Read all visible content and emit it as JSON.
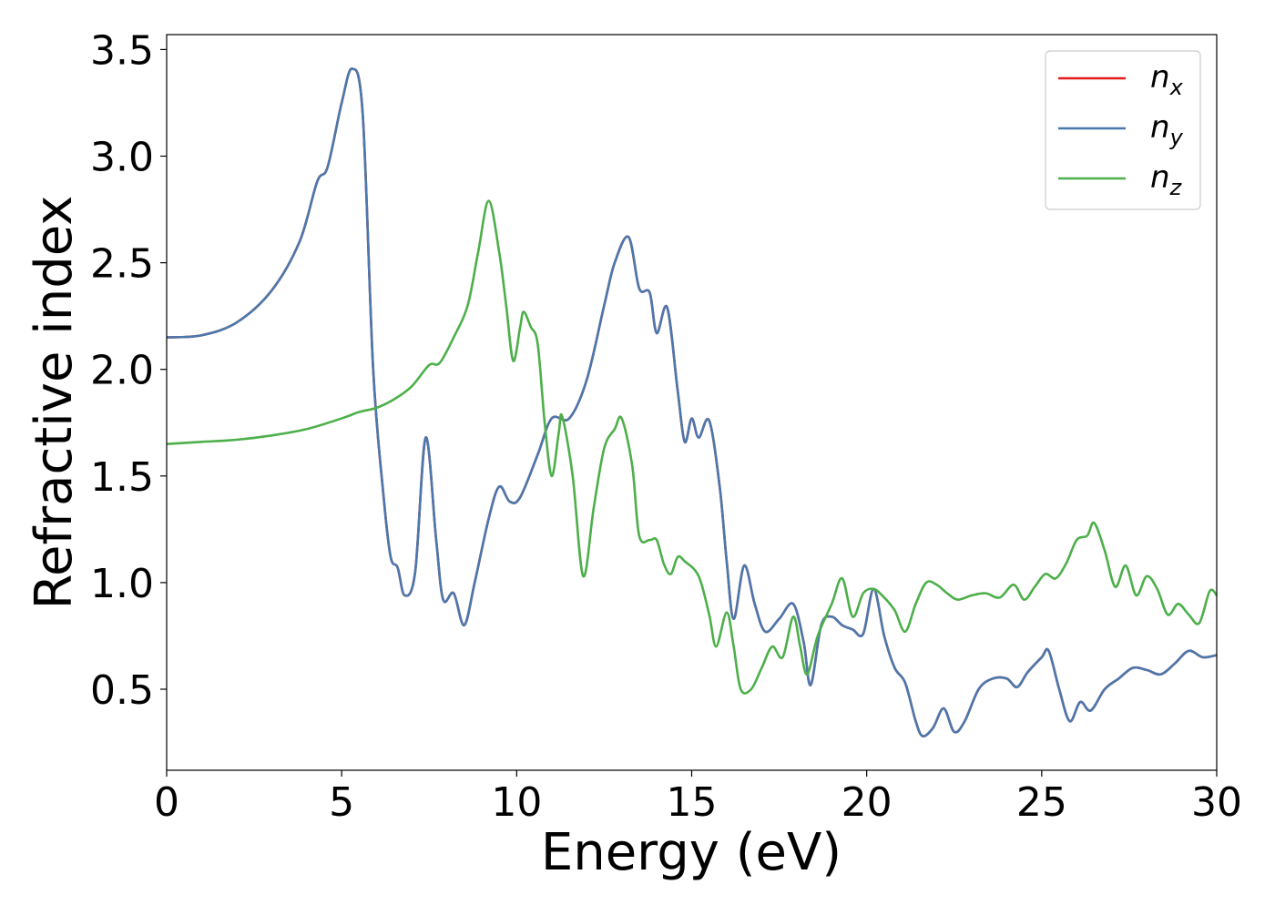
{
  "chart_data": {
    "type": "line",
    "xlabel": "Energy (eV)",
    "ylabel": "Refractive index",
    "xlim": [
      0,
      30
    ],
    "ylim": [
      0.12,
      3.57
    ],
    "xticks": [
      0,
      5,
      10,
      15,
      20,
      25,
      30
    ],
    "xtick_labels": [
      "0",
      "5",
      "10",
      "15",
      "20",
      "25",
      "30"
    ],
    "yticks": [
      0.5,
      1.0,
      1.5,
      2.0,
      2.5,
      3.0,
      3.5
    ],
    "ytick_labels": [
      "0.5",
      "1.0",
      "1.5",
      "2.0",
      "2.5",
      "3.0",
      "3.5"
    ],
    "grid": false,
    "legend_position": "top-right",
    "series": [
      {
        "name": "n",
        "subscript": "x",
        "color": "#e41a1c",
        "points": [
          [
            0,
            2.15
          ],
          [
            1,
            2.16
          ],
          [
            2,
            2.22
          ],
          [
            3,
            2.37
          ],
          [
            3.8,
            2.6
          ],
          [
            4.3,
            2.88
          ],
          [
            4.6,
            2.95
          ],
          [
            5.0,
            3.25
          ],
          [
            5.3,
            3.41
          ],
          [
            5.6,
            3.2
          ],
          [
            5.9,
            2.0
          ],
          [
            6.2,
            1.4
          ],
          [
            6.4,
            1.12
          ],
          [
            6.6,
            1.07
          ],
          [
            6.8,
            0.94
          ],
          [
            7.1,
            1.05
          ],
          [
            7.4,
            1.68
          ],
          [
            7.7,
            1.2
          ],
          [
            7.9,
            0.92
          ],
          [
            8.2,
            0.95
          ],
          [
            8.5,
            0.8
          ],
          [
            8.8,
            1.0
          ],
          [
            9.2,
            1.3
          ],
          [
            9.5,
            1.45
          ],
          [
            9.8,
            1.38
          ],
          [
            10.1,
            1.4
          ],
          [
            10.6,
            1.6
          ],
          [
            11.0,
            1.77
          ],
          [
            11.5,
            1.77
          ],
          [
            12.0,
            1.95
          ],
          [
            12.5,
            2.3
          ],
          [
            12.8,
            2.5
          ],
          [
            13.2,
            2.62
          ],
          [
            13.5,
            2.38
          ],
          [
            13.8,
            2.36
          ],
          [
            14.0,
            2.17
          ],
          [
            14.3,
            2.29
          ],
          [
            14.6,
            1.9
          ],
          [
            14.8,
            1.66
          ],
          [
            15.0,
            1.77
          ],
          [
            15.2,
            1.68
          ],
          [
            15.5,
            1.76
          ],
          [
            15.8,
            1.45
          ],
          [
            16.0,
            1.1
          ],
          [
            16.2,
            0.83
          ],
          [
            16.5,
            1.08
          ],
          [
            16.8,
            0.9
          ],
          [
            17.1,
            0.77
          ],
          [
            17.5,
            0.83
          ],
          [
            17.9,
            0.9
          ],
          [
            18.2,
            0.72
          ],
          [
            18.4,
            0.52
          ],
          [
            18.7,
            0.8
          ],
          [
            19.0,
            0.84
          ],
          [
            19.3,
            0.8
          ],
          [
            19.6,
            0.78
          ],
          [
            19.9,
            0.76
          ],
          [
            20.2,
            0.97
          ],
          [
            20.5,
            0.75
          ],
          [
            20.8,
            0.6
          ],
          [
            21.1,
            0.53
          ],
          [
            21.4,
            0.35
          ],
          [
            21.6,
            0.28
          ],
          [
            21.9,
            0.32
          ],
          [
            22.2,
            0.41
          ],
          [
            22.5,
            0.3
          ],
          [
            22.8,
            0.35
          ],
          [
            23.2,
            0.5
          ],
          [
            23.6,
            0.55
          ],
          [
            24.0,
            0.55
          ],
          [
            24.3,
            0.51
          ],
          [
            24.6,
            0.58
          ],
          [
            25.0,
            0.65
          ],
          [
            25.2,
            0.68
          ],
          [
            25.5,
            0.5
          ],
          [
            25.8,
            0.35
          ],
          [
            26.1,
            0.44
          ],
          [
            26.4,
            0.4
          ],
          [
            26.8,
            0.5
          ],
          [
            27.2,
            0.55
          ],
          [
            27.6,
            0.6
          ],
          [
            28.0,
            0.59
          ],
          [
            28.4,
            0.57
          ],
          [
            28.8,
            0.62
          ],
          [
            29.2,
            0.68
          ],
          [
            29.6,
            0.65
          ],
          [
            30.0,
            0.66
          ]
        ]
      },
      {
        "name": "n",
        "subscript": "y",
        "color": "#4a78ad",
        "points": [
          [
            0,
            2.15
          ],
          [
            1,
            2.16
          ],
          [
            2,
            2.22
          ],
          [
            3,
            2.37
          ],
          [
            3.8,
            2.6
          ],
          [
            4.3,
            2.88
          ],
          [
            4.6,
            2.95
          ],
          [
            5.0,
            3.25
          ],
          [
            5.3,
            3.41
          ],
          [
            5.6,
            3.2
          ],
          [
            5.9,
            2.0
          ],
          [
            6.2,
            1.4
          ],
          [
            6.4,
            1.12
          ],
          [
            6.6,
            1.07
          ],
          [
            6.8,
            0.94
          ],
          [
            7.1,
            1.05
          ],
          [
            7.4,
            1.68
          ],
          [
            7.7,
            1.2
          ],
          [
            7.9,
            0.92
          ],
          [
            8.2,
            0.95
          ],
          [
            8.5,
            0.8
          ],
          [
            8.8,
            1.0
          ],
          [
            9.2,
            1.3
          ],
          [
            9.5,
            1.45
          ],
          [
            9.8,
            1.38
          ],
          [
            10.1,
            1.4
          ],
          [
            10.6,
            1.6
          ],
          [
            11.0,
            1.77
          ],
          [
            11.5,
            1.77
          ],
          [
            12.0,
            1.95
          ],
          [
            12.5,
            2.3
          ],
          [
            12.8,
            2.5
          ],
          [
            13.2,
            2.62
          ],
          [
            13.5,
            2.38
          ],
          [
            13.8,
            2.36
          ],
          [
            14.0,
            2.17
          ],
          [
            14.3,
            2.29
          ],
          [
            14.6,
            1.9
          ],
          [
            14.8,
            1.66
          ],
          [
            15.0,
            1.77
          ],
          [
            15.2,
            1.68
          ],
          [
            15.5,
            1.76
          ],
          [
            15.8,
            1.45
          ],
          [
            16.0,
            1.1
          ],
          [
            16.2,
            0.83
          ],
          [
            16.5,
            1.08
          ],
          [
            16.8,
            0.9
          ],
          [
            17.1,
            0.77
          ],
          [
            17.5,
            0.83
          ],
          [
            17.9,
            0.9
          ],
          [
            18.2,
            0.72
          ],
          [
            18.4,
            0.52
          ],
          [
            18.7,
            0.8
          ],
          [
            19.0,
            0.84
          ],
          [
            19.3,
            0.8
          ],
          [
            19.6,
            0.78
          ],
          [
            19.9,
            0.76
          ],
          [
            20.2,
            0.97
          ],
          [
            20.5,
            0.75
          ],
          [
            20.8,
            0.6
          ],
          [
            21.1,
            0.53
          ],
          [
            21.4,
            0.35
          ],
          [
            21.6,
            0.28
          ],
          [
            21.9,
            0.32
          ],
          [
            22.2,
            0.41
          ],
          [
            22.5,
            0.3
          ],
          [
            22.8,
            0.35
          ],
          [
            23.2,
            0.5
          ],
          [
            23.6,
            0.55
          ],
          [
            24.0,
            0.55
          ],
          [
            24.3,
            0.51
          ],
          [
            24.6,
            0.58
          ],
          [
            25.0,
            0.65
          ],
          [
            25.2,
            0.68
          ],
          [
            25.5,
            0.5
          ],
          [
            25.8,
            0.35
          ],
          [
            26.1,
            0.44
          ],
          [
            26.4,
            0.4
          ],
          [
            26.8,
            0.5
          ],
          [
            27.2,
            0.55
          ],
          [
            27.6,
            0.6
          ],
          [
            28.0,
            0.59
          ],
          [
            28.4,
            0.57
          ],
          [
            28.8,
            0.62
          ],
          [
            29.2,
            0.68
          ],
          [
            29.6,
            0.65
          ],
          [
            30.0,
            0.66
          ]
        ]
      },
      {
        "name": "n",
        "subscript": "z",
        "color": "#4daf4a",
        "points": [
          [
            0,
            1.65
          ],
          [
            1,
            1.66
          ],
          [
            2,
            1.67
          ],
          [
            3,
            1.69
          ],
          [
            4,
            1.72
          ],
          [
            5,
            1.77
          ],
          [
            5.5,
            1.8
          ],
          [
            6,
            1.82
          ],
          [
            6.5,
            1.86
          ],
          [
            7,
            1.92
          ],
          [
            7.5,
            2.02
          ],
          [
            7.8,
            2.03
          ],
          [
            8.2,
            2.15
          ],
          [
            8.6,
            2.3
          ],
          [
            8.9,
            2.55
          ],
          [
            9.2,
            2.79
          ],
          [
            9.5,
            2.55
          ],
          [
            9.7,
            2.3
          ],
          [
            9.9,
            2.04
          ],
          [
            10.1,
            2.2
          ],
          [
            10.2,
            2.27
          ],
          [
            10.4,
            2.2
          ],
          [
            10.6,
            2.12
          ],
          [
            10.8,
            1.75
          ],
          [
            11.0,
            1.5
          ],
          [
            11.2,
            1.7
          ],
          [
            11.3,
            1.78
          ],
          [
            11.6,
            1.5
          ],
          [
            11.9,
            1.03
          ],
          [
            12.2,
            1.35
          ],
          [
            12.5,
            1.63
          ],
          [
            12.8,
            1.72
          ],
          [
            13.0,
            1.77
          ],
          [
            13.3,
            1.55
          ],
          [
            13.5,
            1.22
          ],
          [
            13.8,
            1.2
          ],
          [
            14.0,
            1.2
          ],
          [
            14.2,
            1.09
          ],
          [
            14.4,
            1.04
          ],
          [
            14.6,
            1.12
          ],
          [
            14.8,
            1.1
          ],
          [
            15.2,
            1.03
          ],
          [
            15.5,
            0.85
          ],
          [
            15.7,
            0.7
          ],
          [
            16.0,
            0.86
          ],
          [
            16.2,
            0.7
          ],
          [
            16.4,
            0.5
          ],
          [
            16.7,
            0.5
          ],
          [
            17.0,
            0.6
          ],
          [
            17.3,
            0.7
          ],
          [
            17.6,
            0.65
          ],
          [
            17.9,
            0.84
          ],
          [
            18.1,
            0.7
          ],
          [
            18.3,
            0.57
          ],
          [
            18.6,
            0.75
          ],
          [
            19.0,
            0.9
          ],
          [
            19.3,
            1.02
          ],
          [
            19.6,
            0.84
          ],
          [
            19.9,
            0.95
          ],
          [
            20.2,
            0.97
          ],
          [
            20.5,
            0.93
          ],
          [
            20.8,
            0.87
          ],
          [
            21.1,
            0.77
          ],
          [
            21.4,
            0.9
          ],
          [
            21.7,
            1.0
          ],
          [
            22.0,
            0.99
          ],
          [
            22.3,
            0.95
          ],
          [
            22.6,
            0.92
          ],
          [
            23.0,
            0.94
          ],
          [
            23.4,
            0.95
          ],
          [
            23.8,
            0.93
          ],
          [
            24.2,
            0.99
          ],
          [
            24.5,
            0.92
          ],
          [
            24.8,
            0.98
          ],
          [
            25.1,
            1.04
          ],
          [
            25.4,
            1.02
          ],
          [
            25.7,
            1.09
          ],
          [
            26.0,
            1.2
          ],
          [
            26.3,
            1.22
          ],
          [
            26.5,
            1.28
          ],
          [
            26.8,
            1.15
          ],
          [
            27.1,
            0.98
          ],
          [
            27.4,
            1.08
          ],
          [
            27.7,
            0.94
          ],
          [
            28.0,
            1.03
          ],
          [
            28.3,
            0.97
          ],
          [
            28.6,
            0.85
          ],
          [
            28.9,
            0.9
          ],
          [
            29.2,
            0.85
          ],
          [
            29.5,
            0.81
          ],
          [
            29.8,
            0.96
          ],
          [
            30.0,
            0.94
          ]
        ]
      }
    ]
  }
}
